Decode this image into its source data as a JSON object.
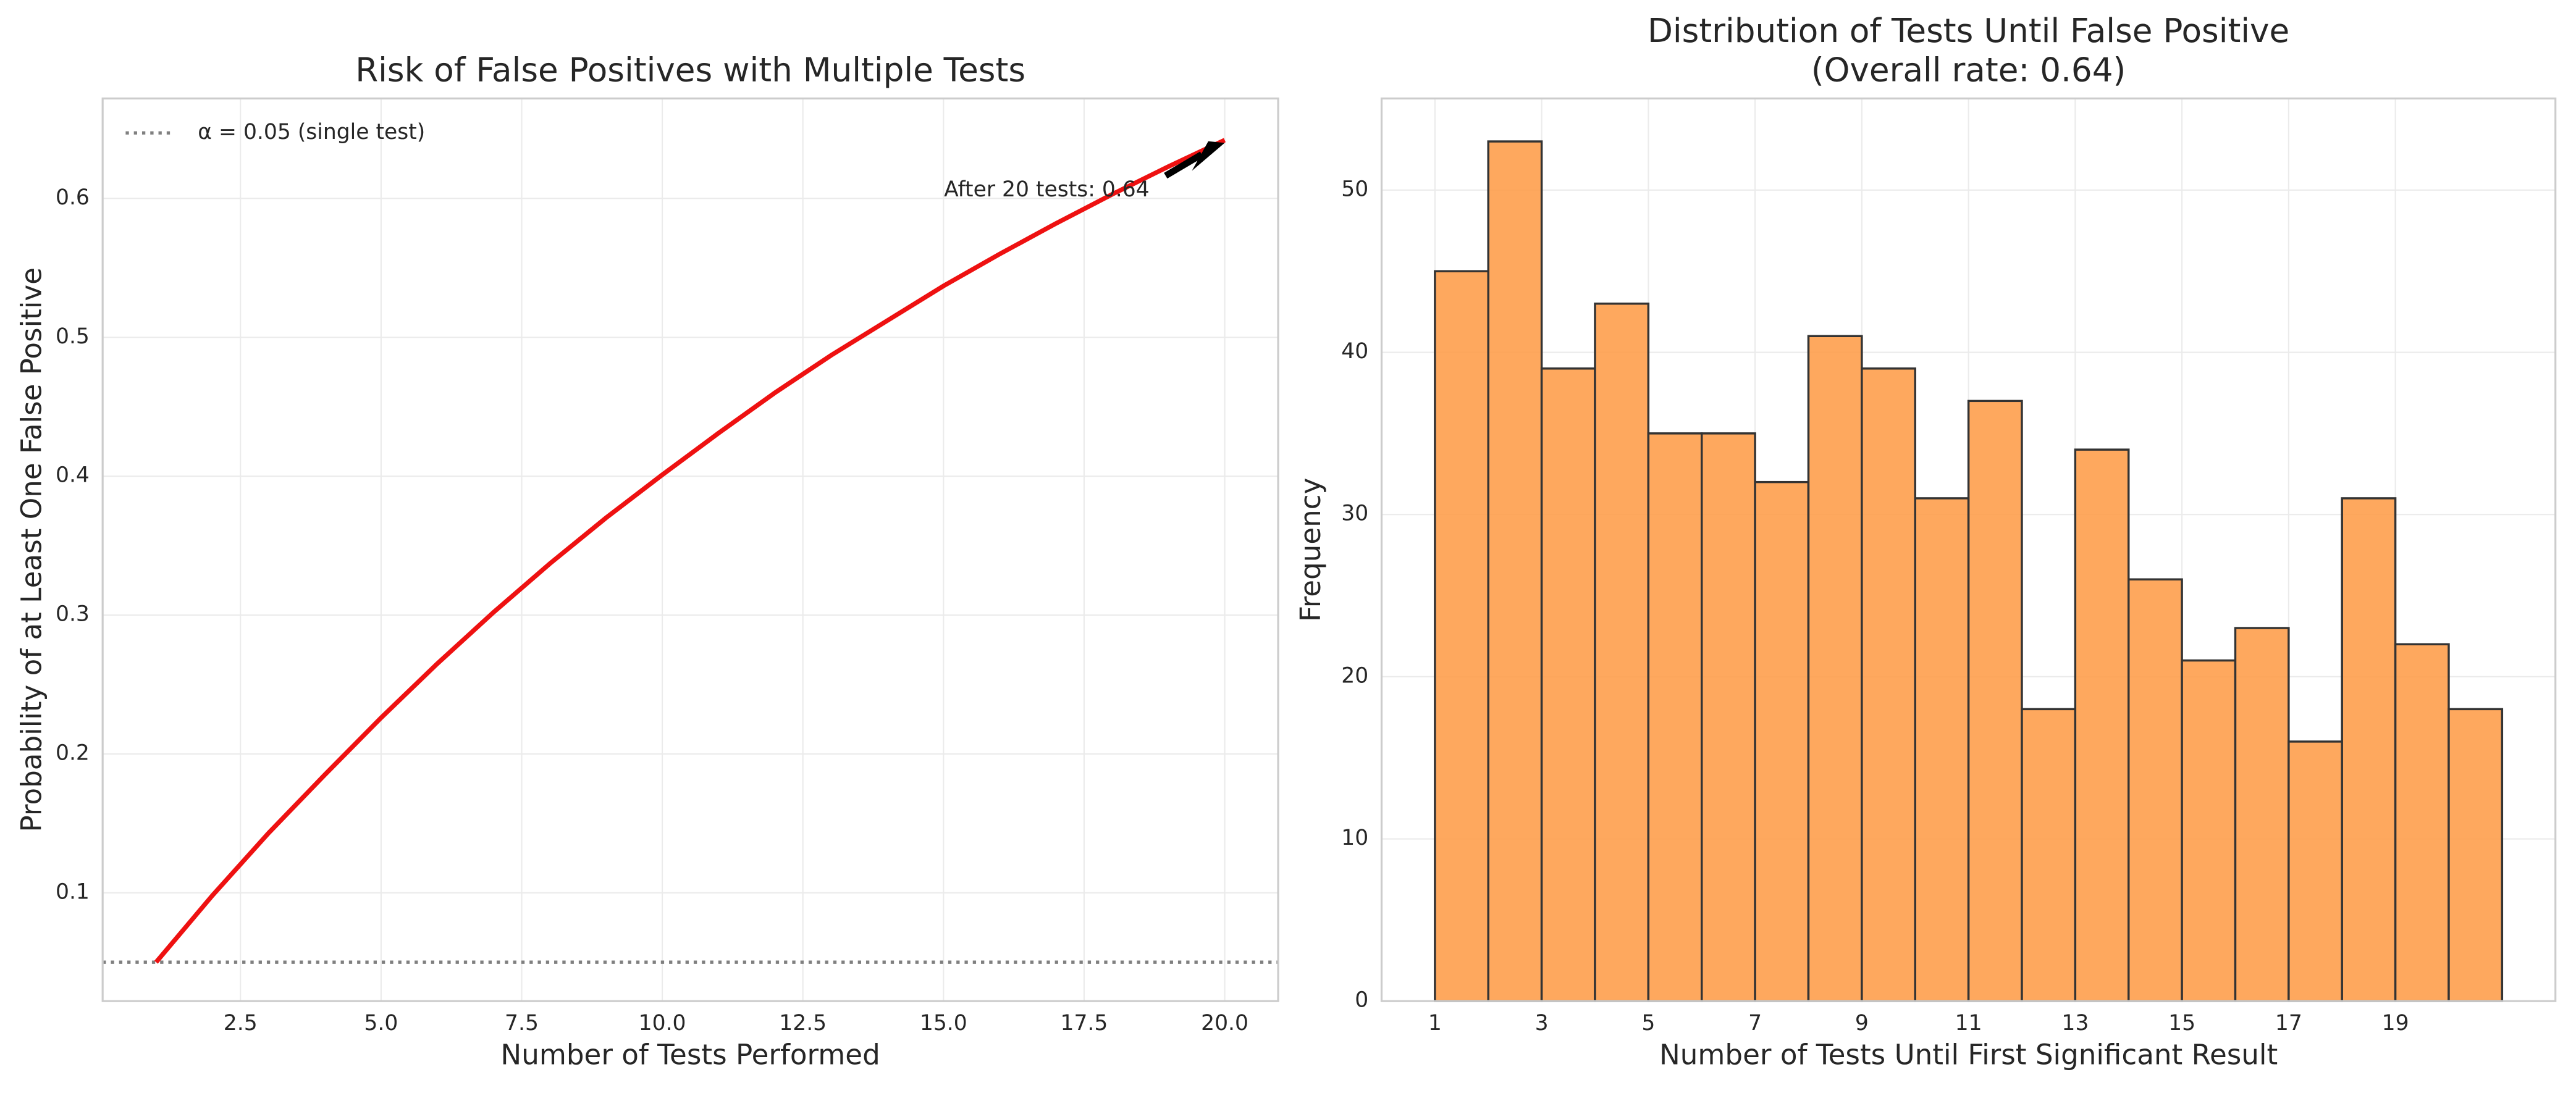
{
  "chart_data": [
    {
      "type": "line",
      "title": [
        "Risk of False Positives with Multiple Tests"
      ],
      "xlabel": "Number of Tests Performed",
      "ylabel": "Probability of at Least One False Positive",
      "x": [
        1,
        2,
        3,
        4,
        5,
        6,
        7,
        8,
        9,
        10,
        11,
        12,
        13,
        14,
        15,
        16,
        17,
        18,
        19,
        20
      ],
      "values": [
        0.05,
        0.098,
        0.143,
        0.185,
        0.226,
        0.265,
        0.302,
        0.337,
        0.37,
        0.401,
        0.431,
        0.46,
        0.487,
        0.512,
        0.537,
        0.56,
        0.582,
        0.603,
        0.623,
        0.642
      ],
      "color": "#ee1111",
      "hline": {
        "value": 0.05,
        "label": "α = 0.05 (single test)",
        "color": "#808080"
      },
      "annotation": {
        "text": "After 20 tests: 0.64",
        "x": 20,
        "y": 0.64
      },
      "xlim": [
        0.05,
        20.95
      ],
      "xticks": [
        2.5,
        {
          "value": 5,
          "label": "5.0"
        },
        7.5,
        {
          "value": 10,
          "label": "10.0"
        },
        12.5,
        {
          "value": 15,
          "label": "15.0"
        },
        17.5,
        {
          "value": 20,
          "label": "20.0"
        }
      ],
      "ylim": [
        0.022,
        0.672
      ],
      "yticks": [
        0.1,
        0.2,
        0.3,
        0.4,
        0.5,
        0.6
      ],
      "grid": true,
      "legend": "upper left"
    },
    {
      "type": "histogram",
      "title": [
        "Distribution of Tests Until False Positive",
        "(Overall rate: 0.64)"
      ],
      "xlabel": "Number of Tests Until First Significant Result",
      "ylabel": "Frequency",
      "bins": [
        1,
        2,
        3,
        4,
        5,
        6,
        7,
        8,
        9,
        10,
        11,
        12,
        13,
        14,
        15,
        16,
        17,
        18,
        19,
        20,
        21
      ],
      "values": [
        45,
        53,
        39,
        43,
        35,
        35,
        32,
        41,
        39,
        31,
        37,
        18,
        34,
        26,
        21,
        23,
        16,
        31,
        22,
        18
      ],
      "color": "#fe9f4c",
      "edgecolor": "#333333",
      "xlim": [
        0,
        22
      ],
      "xticks": [
        1,
        3,
        5,
        7,
        9,
        11,
        13,
        15,
        17,
        19
      ],
      "ylim": [
        0,
        55.65
      ],
      "yticks": [
        0,
        10,
        20,
        30,
        40,
        50
      ],
      "grid": true
    }
  ]
}
